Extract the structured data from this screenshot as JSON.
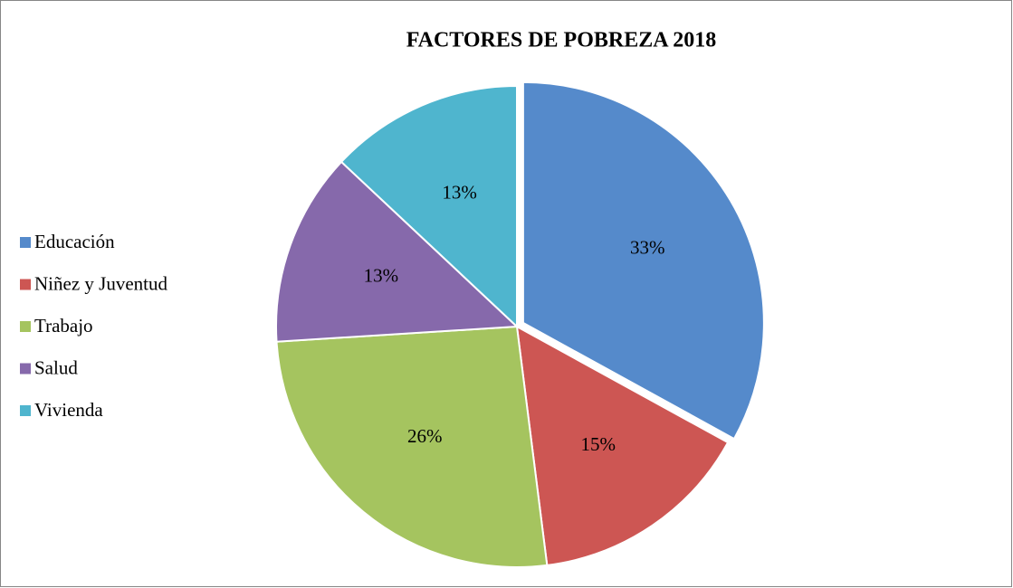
{
  "chart_data": {
    "type": "pie",
    "title": "FACTORES DE POBREZA 2018",
    "categories": [
      "Educación",
      "Niñez y Juventud",
      "Trabajo",
      "Salud",
      "Vivienda"
    ],
    "values": [
      33,
      15,
      26,
      13,
      13
    ],
    "value_labels": [
      "33%",
      "15%",
      "26%",
      "13%",
      "13%"
    ],
    "colors": [
      "#558acb",
      "#cd5653",
      "#a5c45f",
      "#8669ab",
      "#4fb5ce"
    ],
    "legend": "left"
  }
}
